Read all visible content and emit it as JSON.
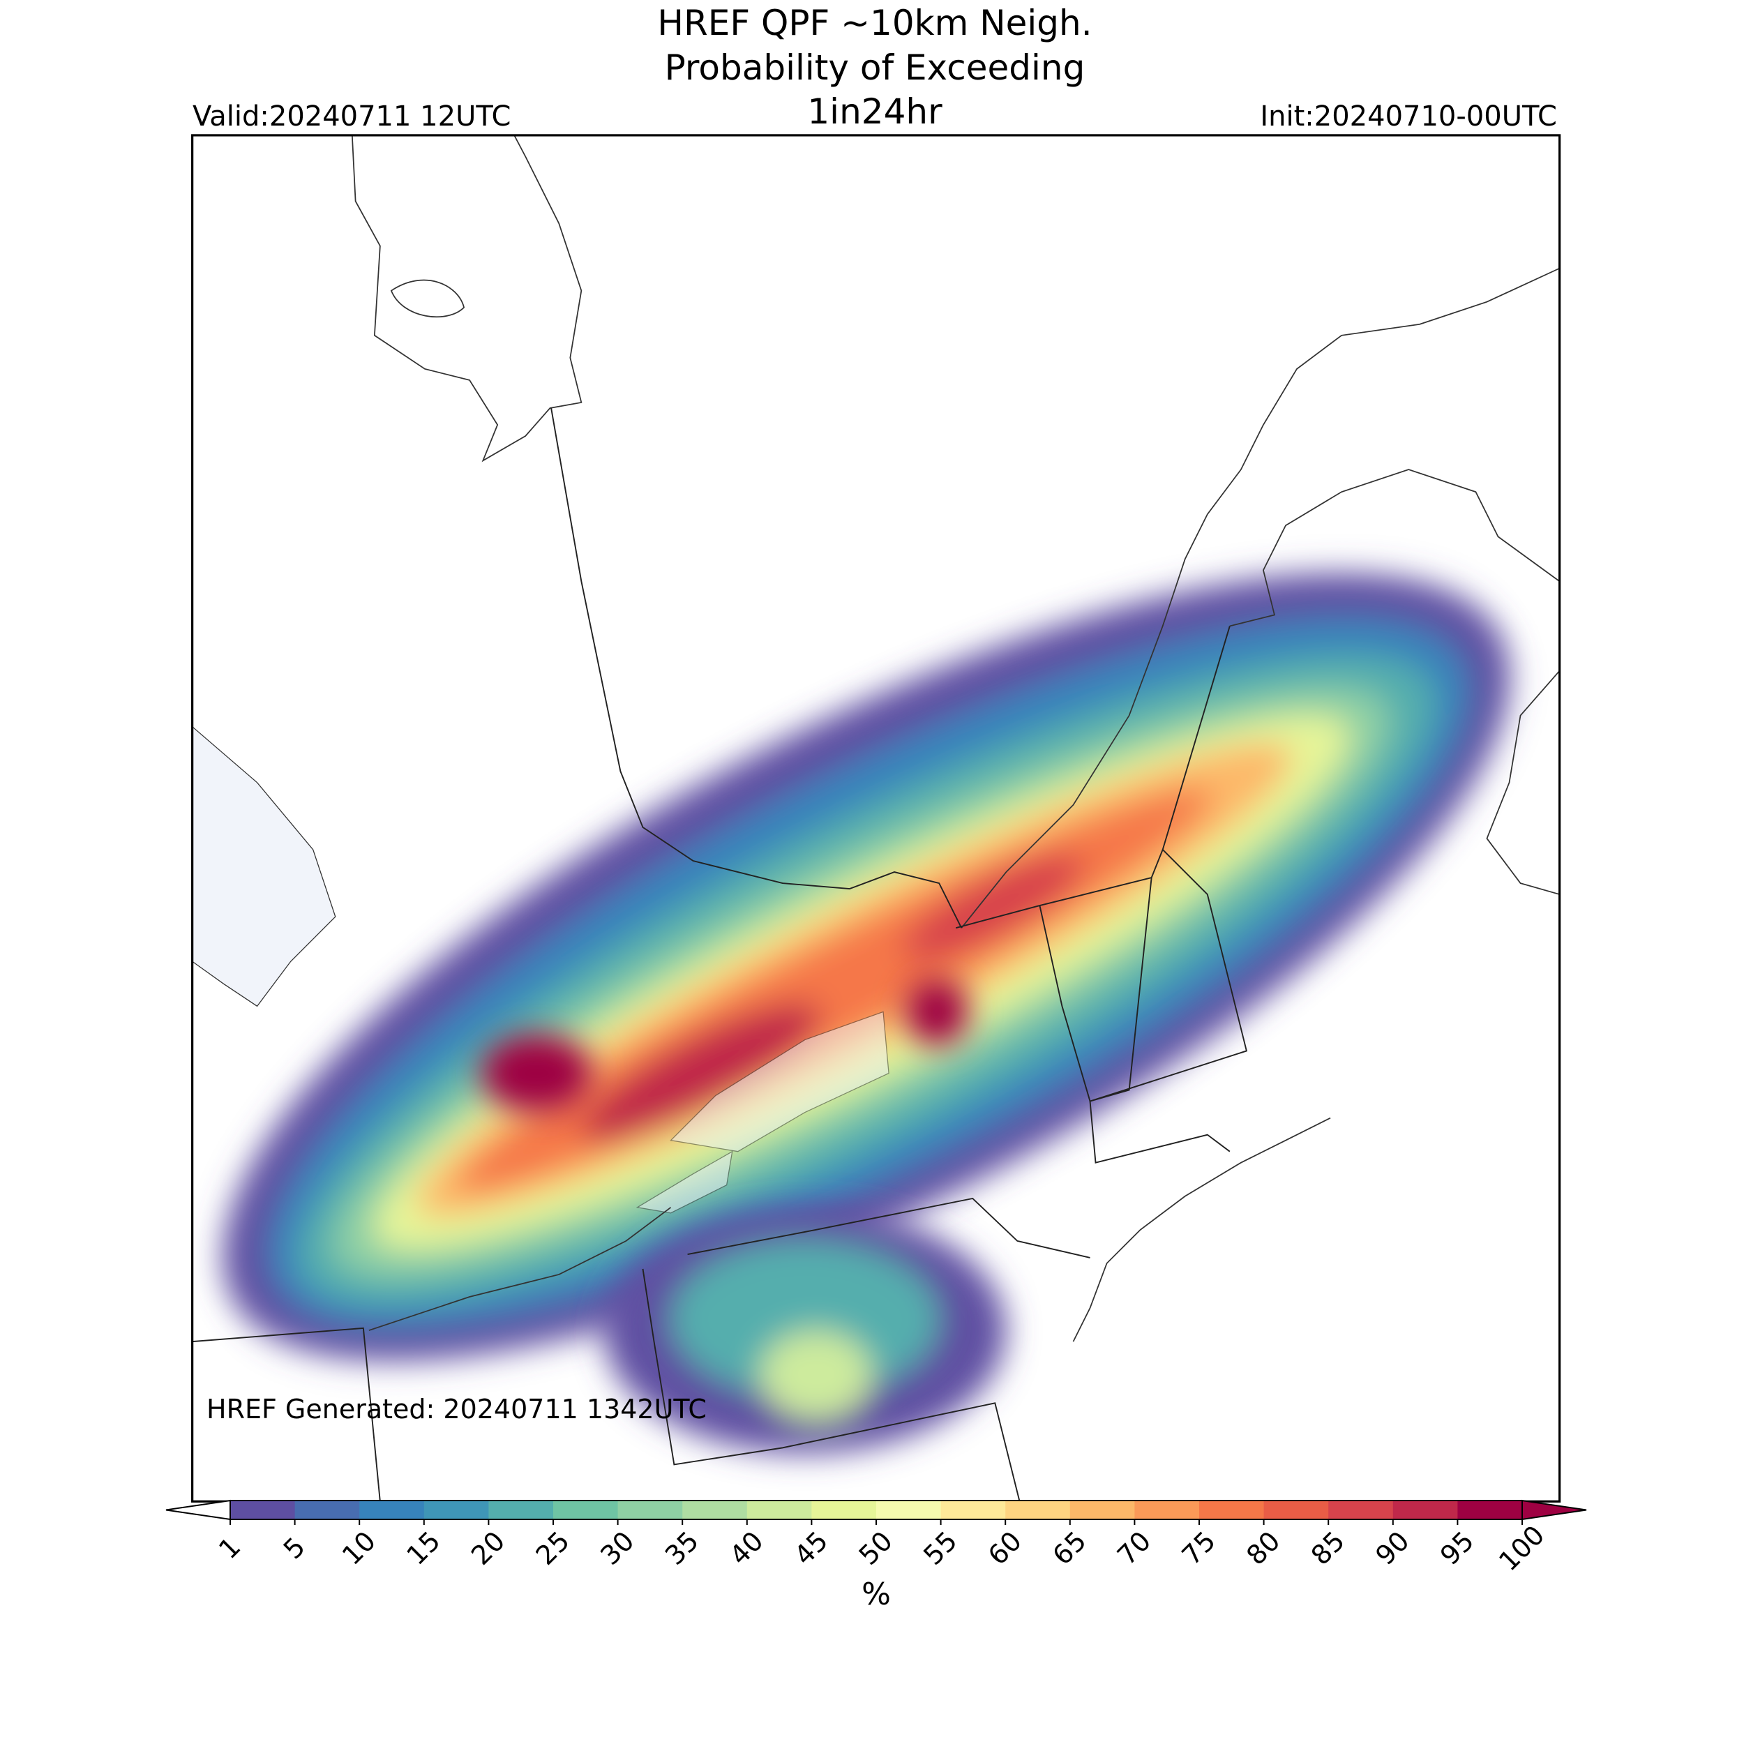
{
  "header": {
    "title_lines": [
      "HREF QPF ~10km Neigh.",
      "Probability of Exceeding",
      "1in24hr"
    ],
    "valid": "Valid:20240711 12UTC",
    "init": "Init:20240710-00UTC"
  },
  "annotation": "HREF Generated: 20240711 1342UTC",
  "colorbar": {
    "levels": [
      1,
      5,
      10,
      15,
      20,
      25,
      30,
      35,
      40,
      45,
      50,
      55,
      60,
      65,
      70,
      75,
      80,
      85,
      90,
      95,
      100
    ],
    "colors": [
      "#5e4fa2",
      "#486db0",
      "#3783bb",
      "#3f96b7",
      "#54aead",
      "#6fc4a4",
      "#8fd0a4",
      "#afdda2",
      "#cdeb9d",
      "#e6f598",
      "#f6fbaf",
      "#fee999",
      "#fed481",
      "#fdb869",
      "#fb9a58",
      "#f57748",
      "#e95d46",
      "#d7434c",
      "#c0284a",
      "#9e0142"
    ],
    "under_color": "#ffffff",
    "over_color": "#9e0142",
    "label": "%"
  }
}
